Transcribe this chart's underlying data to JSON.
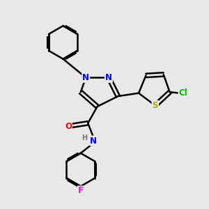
{
  "bg_color": "#e8e8e8",
  "bond_color": "#000000",
  "bond_width": 1.8,
  "atom_colors": {
    "N": "#0000ff",
    "O": "#ff0000",
    "S": "#aaaa00",
    "Cl": "#00bb00",
    "F": "#ff00ff",
    "H": "#777777",
    "C": "#000000"
  },
  "font_size": 8.5
}
